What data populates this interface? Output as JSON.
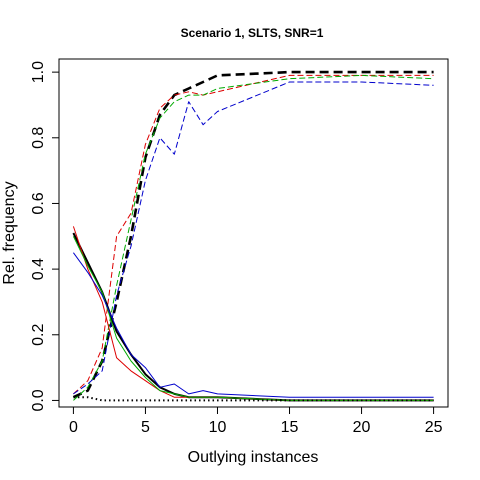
{
  "chart_data": {
    "type": "line",
    "title": "Scenario 1, SLTS, SNR=1",
    "xlabel": "Outlying instances",
    "ylabel": "Rel. frequency",
    "xlim": [
      -1,
      26
    ],
    "ylim": [
      -0.02,
      1.04
    ],
    "x_ticks": [
      0,
      5,
      10,
      15,
      20,
      25
    ],
    "y_ticks": [
      0.0,
      0.2,
      0.4,
      0.6,
      0.8,
      1.0
    ],
    "grid": false,
    "legend": "none",
    "x": [
      0,
      1,
      2,
      3,
      4,
      5,
      6,
      7,
      8,
      9,
      10,
      15,
      20,
      25
    ],
    "series": [
      {
        "color": "#000000",
        "style": "dashed-thick",
        "values": [
          0.01,
          0.03,
          0.12,
          0.3,
          0.5,
          0.74,
          0.87,
          0.93,
          0.95,
          0.97,
          0.99,
          1.0,
          1.0,
          1.0
        ]
      },
      {
        "color": "#dd0000",
        "style": "dashed",
        "values": [
          0.02,
          0.06,
          0.16,
          0.5,
          0.57,
          0.78,
          0.89,
          0.93,
          0.94,
          0.93,
          0.94,
          0.99,
          0.99,
          0.99
        ]
      },
      {
        "color": "#00aa00",
        "style": "dashed",
        "values": [
          0.0,
          0.04,
          0.12,
          0.35,
          0.55,
          0.75,
          0.86,
          0.91,
          0.93,
          0.93,
          0.95,
          0.98,
          0.99,
          0.98
        ]
      },
      {
        "color": "#0000cc",
        "style": "dashed",
        "values": [
          0.02,
          0.05,
          0.09,
          0.32,
          0.47,
          0.67,
          0.8,
          0.75,
          0.91,
          0.84,
          0.88,
          0.97,
          0.97,
          0.96
        ]
      },
      {
        "color": "#000000",
        "style": "solid-thick",
        "values": [
          0.51,
          0.42,
          0.33,
          0.21,
          0.14,
          0.08,
          0.04,
          0.02,
          0.01,
          0.01,
          0.01,
          0.0,
          0.0,
          0.0
        ]
      },
      {
        "color": "#dd0000",
        "style": "solid",
        "values": [
          0.53,
          0.4,
          0.3,
          0.13,
          0.09,
          0.06,
          0.03,
          0.01,
          0.01,
          0.01,
          0.01,
          0.0,
          0.0,
          0.0
        ]
      },
      {
        "color": "#00aa00",
        "style": "solid",
        "values": [
          0.5,
          0.41,
          0.33,
          0.19,
          0.12,
          0.07,
          0.03,
          0.02,
          0.01,
          0.01,
          0.01,
          0.0,
          0.0,
          0.0
        ]
      },
      {
        "color": "#0000cc",
        "style": "solid",
        "values": [
          0.45,
          0.39,
          0.32,
          0.22,
          0.14,
          0.1,
          0.04,
          0.05,
          0.02,
          0.03,
          0.02,
          0.01,
          0.01,
          0.01
        ]
      },
      {
        "color": "#000000",
        "style": "dotted",
        "values": [
          0.01,
          0.01,
          0.0,
          0.0,
          0.0,
          0.0,
          0.0,
          0.0,
          0.0,
          0.0,
          0.0,
          0.0,
          0.0,
          0.0
        ]
      }
    ]
  }
}
